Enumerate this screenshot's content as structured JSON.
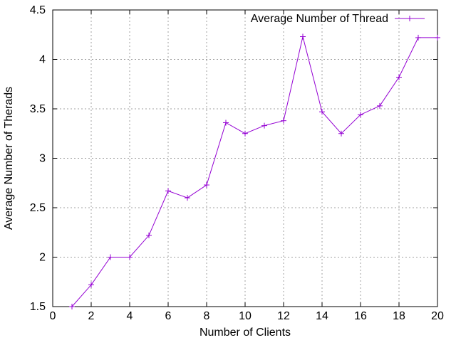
{
  "chart_data": {
    "type": "line",
    "title": "",
    "xlabel": "Number of Clients",
    "ylabel": "Average Number of Therads",
    "xlim": [
      0,
      20
    ],
    "ylim": [
      1.5,
      4.5
    ],
    "x_ticks": [
      0,
      2,
      4,
      6,
      8,
      10,
      12,
      14,
      16,
      18,
      20
    ],
    "x_tick_labels": [
      "0",
      "2",
      "4",
      "6",
      "8",
      "10",
      "12",
      "14",
      "16",
      "18",
      "20"
    ],
    "y_ticks": [
      1.5,
      2,
      2.5,
      3,
      3.5,
      4,
      4.5
    ],
    "y_tick_labels": [
      "1.5",
      "2",
      "2.5",
      "3",
      "3.5",
      "4",
      "4.5"
    ],
    "grid": true,
    "legend_position": "top-right",
    "series": [
      {
        "name": "Average Number of Thread",
        "color": "#9400d3",
        "marker": "plus",
        "x": [
          1,
          2,
          3,
          4,
          5,
          6,
          7,
          8,
          9,
          10,
          11,
          12,
          13,
          14,
          15,
          16,
          17,
          18,
          19,
          20
        ],
        "y": [
          1.5,
          1.72,
          2.0,
          2.0,
          2.22,
          2.67,
          2.6,
          2.73,
          3.36,
          3.25,
          3.33,
          3.38,
          4.23,
          3.47,
          3.25,
          3.44,
          3.53,
          3.82,
          4.22,
          4.22
        ]
      }
    ]
  }
}
